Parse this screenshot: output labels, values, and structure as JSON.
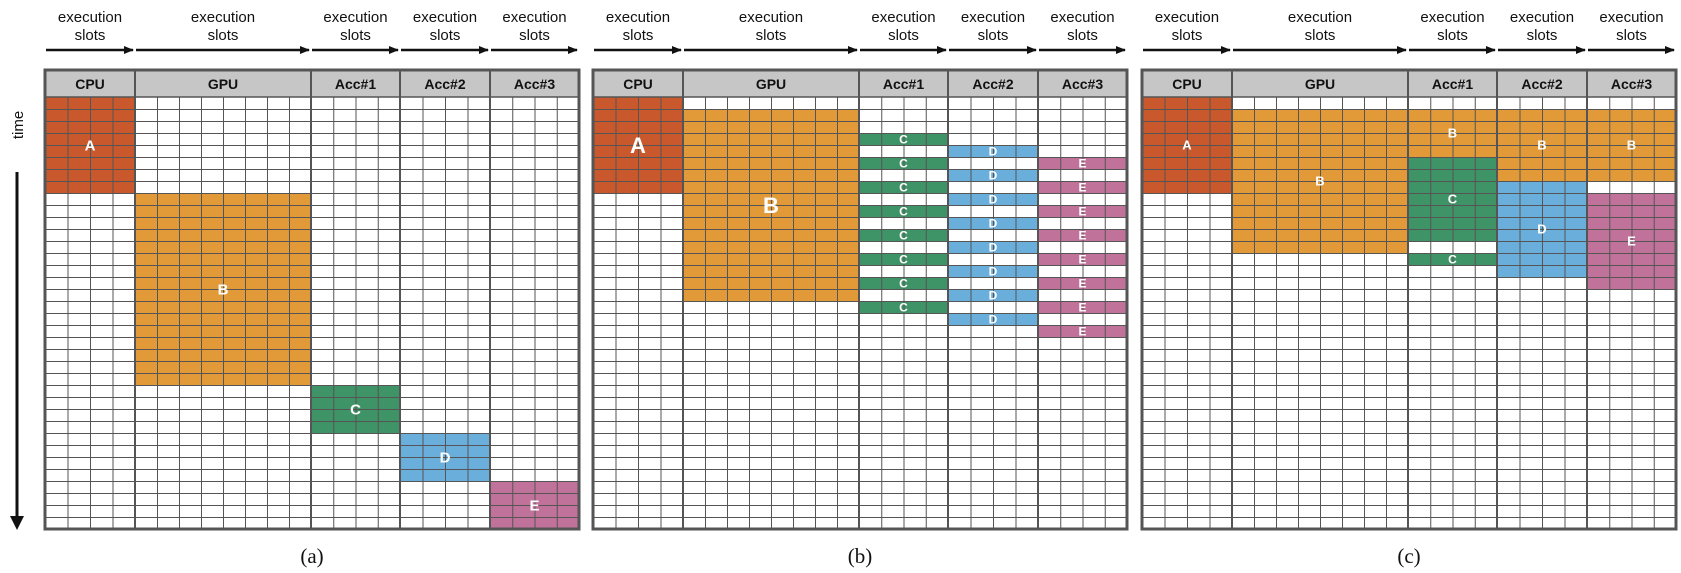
{
  "header_text": [
    "execution",
    "slots"
  ],
  "columns": [
    "CPU",
    "GPU",
    "Acc#1",
    "Acc#2",
    "Acc#3"
  ],
  "time_label": "time",
  "colors": {
    "A": "#c9582c",
    "B": "#e19a37",
    "C": "#3e9467",
    "D": "#6aaedc",
    "E": "#c1729b",
    "header_bg": "#c6c6c6",
    "grid": "#555555",
    "frame": "#555555"
  },
  "panels": [
    {
      "caption": "(a)",
      "blocks": [
        {
          "label": "A",
          "slots": [
            {
              "col": 0,
              "start": 0,
              "len": 8
            }
          ]
        },
        {
          "label": "B",
          "slots": [
            {
              "col": 1,
              "start": 8,
              "len": 16
            }
          ]
        },
        {
          "label": "C",
          "slots": [
            {
              "col": 2,
              "start": 24,
              "len": 4
            }
          ]
        },
        {
          "label": "D",
          "slots": [
            {
              "col": 3,
              "start": 28,
              "len": 4
            }
          ]
        },
        {
          "label": "E",
          "slots": [
            {
              "col": 4,
              "start": 32,
              "len": 4
            }
          ]
        }
      ]
    },
    {
      "caption": "(b)",
      "blocks": [
        {
          "label": "A",
          "slots": [
            {
              "col": 0,
              "start": 0,
              "len": 8
            }
          ]
        },
        {
          "label": "B",
          "slots": [
            {
              "col": 1,
              "start": 1,
              "len": 16
            }
          ]
        },
        {
          "label": "C",
          "slots": [
            {
              "col": 2,
              "start": 3,
              "len": 1
            },
            {
              "col": 2,
              "start": 5,
              "len": 1
            },
            {
              "col": 2,
              "start": 7,
              "len": 1
            },
            {
              "col": 2,
              "start": 9,
              "len": 1
            },
            {
              "col": 2,
              "start": 11,
              "len": 1
            },
            {
              "col": 2,
              "start": 13,
              "len": 1
            },
            {
              "col": 2,
              "start": 15,
              "len": 1
            },
            {
              "col": 2,
              "start": 17,
              "len": 1
            }
          ]
        },
        {
          "label": "D",
          "slots": [
            {
              "col": 3,
              "start": 4,
              "len": 1
            },
            {
              "col": 3,
              "start": 6,
              "len": 1
            },
            {
              "col": 3,
              "start": 8,
              "len": 1
            },
            {
              "col": 3,
              "start": 10,
              "len": 1
            },
            {
              "col": 3,
              "start": 12,
              "len": 1
            },
            {
              "col": 3,
              "start": 14,
              "len": 1
            },
            {
              "col": 3,
              "start": 16,
              "len": 1
            },
            {
              "col": 3,
              "start": 18,
              "len": 1
            }
          ]
        },
        {
          "label": "E",
          "slots": [
            {
              "col": 4,
              "start": 5,
              "len": 1
            },
            {
              "col": 4,
              "start": 7,
              "len": 1
            },
            {
              "col": 4,
              "start": 9,
              "len": 1
            },
            {
              "col": 4,
              "start": 11,
              "len": 1
            },
            {
              "col": 4,
              "start": 13,
              "len": 1
            },
            {
              "col": 4,
              "start": 15,
              "len": 1
            },
            {
              "col": 4,
              "start": 17,
              "len": 1
            },
            {
              "col": 4,
              "start": 19,
              "len": 1
            }
          ]
        }
      ]
    },
    {
      "caption": "(c)",
      "blocks": [
        {
          "label": "A",
          "slots": [
            {
              "col": 0,
              "start": 0,
              "len": 8
            }
          ]
        },
        {
          "label": "B",
          "slots": [
            {
              "col": 1,
              "start": 1,
              "len": 12
            },
            {
              "col": 2,
              "start": 1,
              "len": 4
            },
            {
              "col": 3,
              "start": 1,
              "len": 6
            },
            {
              "col": 4,
              "start": 1,
              "len": 6
            }
          ]
        },
        {
          "label": "C",
          "slots": [
            {
              "col": 2,
              "start": 5,
              "len": 7
            },
            {
              "col": 2,
              "start": 13,
              "len": 1
            }
          ]
        },
        {
          "label": "D",
          "slots": [
            {
              "col": 3,
              "start": 7,
              "len": 8
            }
          ]
        },
        {
          "label": "E",
          "slots": [
            {
              "col": 4,
              "start": 8,
              "len": 8
            }
          ]
        }
      ]
    }
  ]
}
